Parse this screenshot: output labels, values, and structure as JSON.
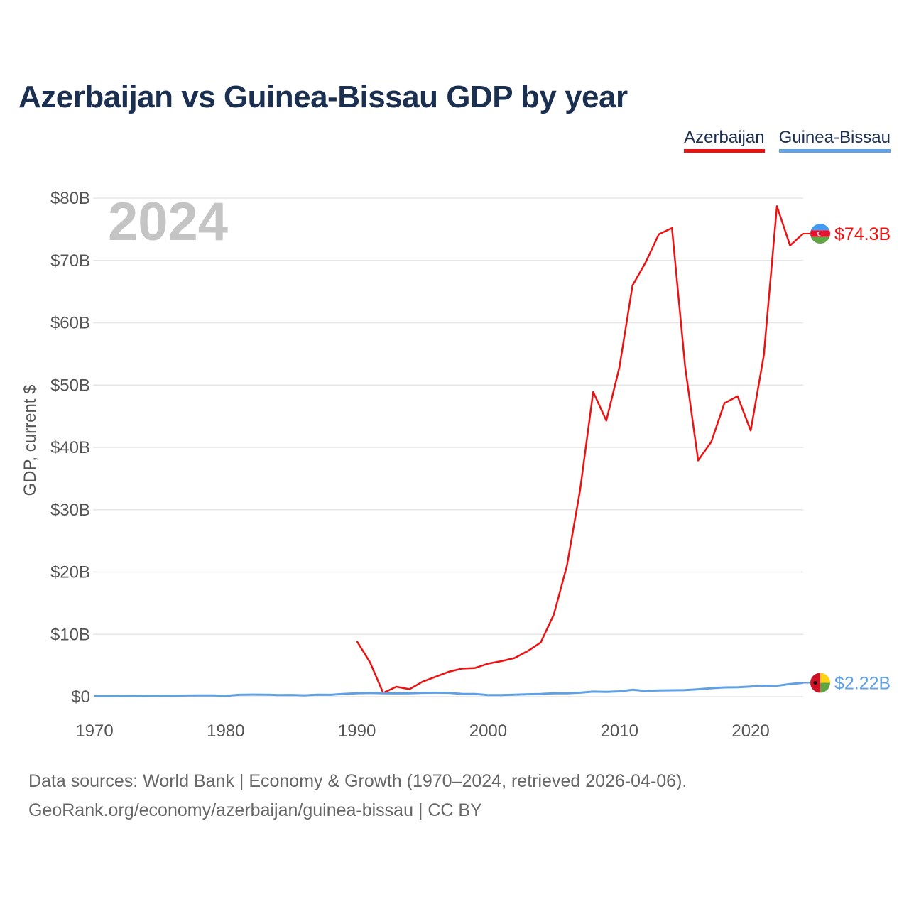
{
  "chart_data": {
    "type": "line",
    "title": "Azerbaijan vs Guinea-Bissau GDP by year",
    "ylabel": "GDP, current $",
    "xlabel": "",
    "year_label": "2024",
    "xlim": [
      1970,
      2024
    ],
    "ylim": [
      0,
      80
    ],
    "x_ticks": [
      1970,
      1980,
      1990,
      2000,
      2010,
      2020
    ],
    "y_ticks": [
      0,
      10,
      20,
      30,
      40,
      50,
      60,
      70,
      80
    ],
    "y_tick_labels": [
      "$0",
      "$10B",
      "$20B",
      "$30B",
      "$40B",
      "$50B",
      "$60B",
      "$70B",
      "$80B"
    ],
    "x_tick_labels": [
      "1970",
      "1980",
      "1990",
      "2000",
      "2010",
      "2020"
    ],
    "grid": true,
    "legend_position": "top-right",
    "series": [
      {
        "name": "Azerbaijan",
        "color": "#ee1111",
        "end_label": "$74.3B",
        "flag_colors": [
          "#3f9cf0",
          "#e8102e",
          "#5fa544"
        ],
        "x": [
          1990,
          1991,
          1992,
          1993,
          1994,
          1995,
          1996,
          1997,
          1998,
          1999,
          2000,
          2001,
          2002,
          2003,
          2004,
          2005,
          2006,
          2007,
          2008,
          2009,
          2010,
          2011,
          2012,
          2013,
          2014,
          2015,
          2016,
          2017,
          2018,
          2019,
          2020,
          2021,
          2022,
          2023,
          2024
        ],
        "values": [
          8.9,
          5.5,
          0.6,
          1.6,
          1.2,
          2.4,
          3.2,
          4.0,
          4.5,
          4.6,
          5.3,
          5.7,
          6.2,
          7.3,
          8.7,
          13.2,
          21.0,
          33.1,
          48.9,
          44.3,
          52.9,
          66.0,
          69.7,
          74.2,
          75.2,
          53.0,
          37.9,
          40.9,
          47.1,
          48.2,
          42.7,
          54.8,
          78.7,
          72.4,
          74.3
        ]
      },
      {
        "name": "Guinea-Bissau",
        "color": "#5fa1e4",
        "end_label": "$2.22B",
        "flag_colors": [
          "#ce1126",
          "#fcd116",
          "#5fa544"
        ],
        "x": [
          1970,
          1971,
          1972,
          1973,
          1974,
          1975,
          1976,
          1977,
          1978,
          1979,
          1980,
          1981,
          1982,
          1983,
          1984,
          1985,
          1986,
          1987,
          1988,
          1989,
          1990,
          1991,
          1992,
          1993,
          1994,
          1995,
          1996,
          1997,
          1998,
          1999,
          2000,
          2001,
          2002,
          2003,
          2004,
          2005,
          2006,
          2007,
          2008,
          2009,
          2010,
          2011,
          2012,
          2013,
          2014,
          2015,
          2016,
          2017,
          2018,
          2019,
          2020,
          2021,
          2022,
          2023,
          2024
        ],
        "values": [
          0.08,
          0.09,
          0.1,
          0.11,
          0.12,
          0.14,
          0.16,
          0.18,
          0.2,
          0.21,
          0.13,
          0.3,
          0.33,
          0.32,
          0.26,
          0.27,
          0.22,
          0.32,
          0.3,
          0.44,
          0.55,
          0.59,
          0.55,
          0.52,
          0.55,
          0.62,
          0.64,
          0.62,
          0.45,
          0.42,
          0.25,
          0.25,
          0.32,
          0.39,
          0.43,
          0.53,
          0.54,
          0.64,
          0.81,
          0.78,
          0.85,
          1.1,
          0.91,
          0.99,
          1.03,
          1.05,
          1.18,
          1.36,
          1.48,
          1.5,
          1.63,
          1.77,
          1.74,
          2.03,
          2.22
        ]
      }
    ],
    "source_line1": "Data sources: World Bank | Economy & Growth (1970–2024, retrieved 2026-04-06).",
    "source_line2": "GeoRank.org/economy/azerbaijan/guinea-bissau | CC BY"
  }
}
